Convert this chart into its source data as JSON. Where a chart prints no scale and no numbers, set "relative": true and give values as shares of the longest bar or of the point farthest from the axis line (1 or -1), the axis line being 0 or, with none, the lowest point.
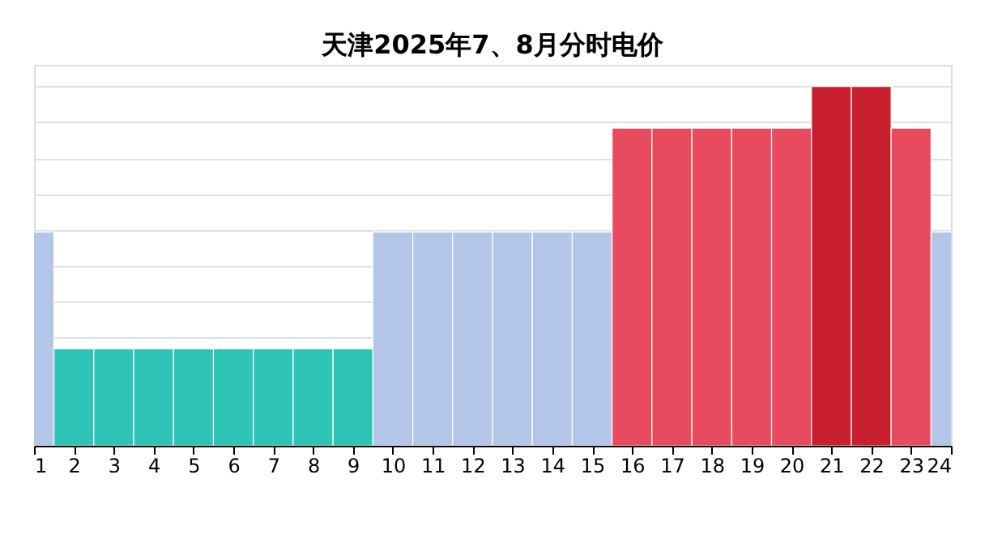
{
  "chart_data": {
    "type": "bar",
    "title": "天津2025年7、8月分时电价",
    "relative": true,
    "x": [
      1,
      2,
      3,
      4,
      5,
      6,
      7,
      8,
      9,
      10,
      11,
      12,
      13,
      14,
      15,
      16,
      17,
      18,
      19,
      20,
      21,
      22,
      23,
      24
    ],
    "xlim": [
      1,
      24
    ],
    "xticks": [
      1,
      2,
      3,
      4,
      5,
      6,
      7,
      8,
      9,
      10,
      11,
      12,
      13,
      14,
      15,
      16,
      17,
      18,
      19,
      20,
      21,
      22,
      23,
      24
    ],
    "values": [
      0.595,
      0.27,
      0.27,
      0.27,
      0.27,
      0.27,
      0.27,
      0.27,
      0.27,
      0.595,
      0.595,
      0.595,
      0.595,
      0.595,
      0.595,
      0.884,
      0.884,
      0.884,
      0.884,
      0.884,
      1,
      1,
      0.884,
      0.595
    ],
    "colors": [
      "#b4c6e7",
      "#2ec4b6",
      "#2ec4b6",
      "#2ec4b6",
      "#2ec4b6",
      "#2ec4b6",
      "#2ec4b6",
      "#2ec4b6",
      "#2ec4b6",
      "#b4c6e7",
      "#b4c6e7",
      "#b4c6e7",
      "#b4c6e7",
      "#b4c6e7",
      "#b4c6e7",
      "#e84a5f",
      "#e84a5f",
      "#e84a5f",
      "#e84a5f",
      "#e84a5f",
      "#c8202f",
      "#c8202f",
      "#e84a5f",
      "#b4c6e7"
    ],
    "grid": "y"
  }
}
